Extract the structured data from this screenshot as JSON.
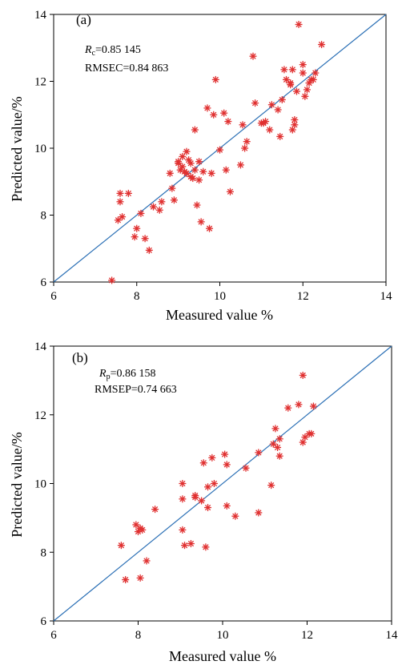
{
  "chart_data": [
    {
      "type": "scatter",
      "panel_label": "(a)",
      "stat_r_symbol": "R",
      "stat_r_sub": "c",
      "stat_r_value": "=0.85 145",
      "stat_rmse": "RMSEC=0.84 863",
      "xlabel": "Measured value %",
      "ylabel": "Predicted value/%",
      "xlim": [
        6,
        14
      ],
      "ylim": [
        6,
        14
      ],
      "xticks": [
        "6",
        "8",
        "10",
        "12",
        "14"
      ],
      "yticks": [
        "6",
        "8",
        "10",
        "12",
        "14"
      ],
      "line": [
        [
          6,
          6
        ],
        [
          14,
          14
        ]
      ],
      "x": [
        7.4,
        7.55,
        7.6,
        7.6,
        7.65,
        7.8,
        7.95,
        8.0,
        8.1,
        8.2,
        8.3,
        8.4,
        8.55,
        8.6,
        8.8,
        8.85,
        8.9,
        9.0,
        9.0,
        9.05,
        9.1,
        9.1,
        9.15,
        9.2,
        9.2,
        9.25,
        9.3,
        9.3,
        9.35,
        9.4,
        9.4,
        9.45,
        9.5,
        9.5,
        9.55,
        9.6,
        9.7,
        9.75,
        9.8,
        9.85,
        9.9,
        10.0,
        10.1,
        10.15,
        10.2,
        10.25,
        10.5,
        10.55,
        10.6,
        10.65,
        10.8,
        10.85,
        11.0,
        11.05,
        11.1,
        11.2,
        11.25,
        11.4,
        11.45,
        11.5,
        11.55,
        11.6,
        11.7,
        11.7,
        11.75,
        11.75,
        11.8,
        11.8,
        11.85,
        11.9,
        12.0,
        12.0,
        12.05,
        12.1,
        12.15,
        12.2,
        12.25,
        12.3,
        12.45
      ],
      "y": [
        6.05,
        7.85,
        8.4,
        8.65,
        7.95,
        8.65,
        7.35,
        7.6,
        8.05,
        7.3,
        6.95,
        8.25,
        8.15,
        8.4,
        9.25,
        8.8,
        8.45,
        9.6,
        9.55,
        9.35,
        9.45,
        9.75,
        9.3,
        9.25,
        9.9,
        9.65,
        9.55,
        9.15,
        9.1,
        9.35,
        10.55,
        8.3,
        9.05,
        9.6,
        7.8,
        9.3,
        11.2,
        7.6,
        9.25,
        11.0,
        12.05,
        9.95,
        11.05,
        9.35,
        10.8,
        8.7,
        9.5,
        10.7,
        10.0,
        10.2,
        12.75,
        11.35,
        10.75,
        10.75,
        10.8,
        10.55,
        11.3,
        11.15,
        10.35,
        11.45,
        12.35,
        12.05,
        11.95,
        11.9,
        10.55,
        12.35,
        10.7,
        10.85,
        11.7,
        13.7,
        12.25,
        12.5,
        11.55,
        11.75,
        11.95,
        12.05,
        12.05,
        12.25,
        13.1
      ]
    },
    {
      "type": "scatter",
      "panel_label": "(b)",
      "stat_r_symbol": "R",
      "stat_r_sub": "p",
      "stat_r_value": "=0.86 158",
      "stat_rmse": "RMSEP=0.74 663",
      "xlabel": "Measured value %",
      "ylabel": "Predicted value/%",
      "xlim": [
        6,
        14
      ],
      "ylim": [
        6,
        14
      ],
      "xticks": [
        "6",
        "8",
        "10",
        "12",
        "14"
      ],
      "yticks": [
        "6",
        "8",
        "10",
        "12",
        "14"
      ],
      "line": [
        [
          6,
          6
        ],
        [
          14,
          14
        ]
      ],
      "x": [
        7.6,
        7.7,
        7.95,
        8.0,
        8.05,
        8.05,
        8.1,
        8.2,
        8.4,
        9.05,
        9.05,
        9.05,
        9.1,
        9.25,
        9.35,
        9.35,
        9.5,
        9.55,
        9.6,
        9.65,
        9.65,
        9.75,
        9.8,
        10.05,
        10.1,
        10.1,
        10.3,
        10.55,
        10.85,
        10.85,
        11.15,
        11.2,
        11.25,
        11.3,
        11.35,
        11.35,
        11.55,
        11.8,
        11.9,
        11.9,
        11.95,
        12.05,
        12.1,
        12.15
      ],
      "y": [
        8.2,
        7.2,
        8.8,
        8.6,
        7.25,
        8.7,
        8.65,
        7.75,
        9.25,
        8.65,
        9.55,
        10.0,
        8.2,
        8.25,
        9.6,
        9.65,
        9.5,
        10.6,
        8.15,
        9.3,
        9.9,
        10.75,
        10.0,
        10.85,
        10.55,
        9.35,
        9.05,
        10.45,
        9.15,
        10.9,
        9.95,
        11.15,
        11.6,
        11.05,
        10.8,
        11.3,
        12.2,
        12.3,
        11.2,
        13.15,
        11.35,
        11.45,
        11.45,
        12.25
      ]
    }
  ]
}
